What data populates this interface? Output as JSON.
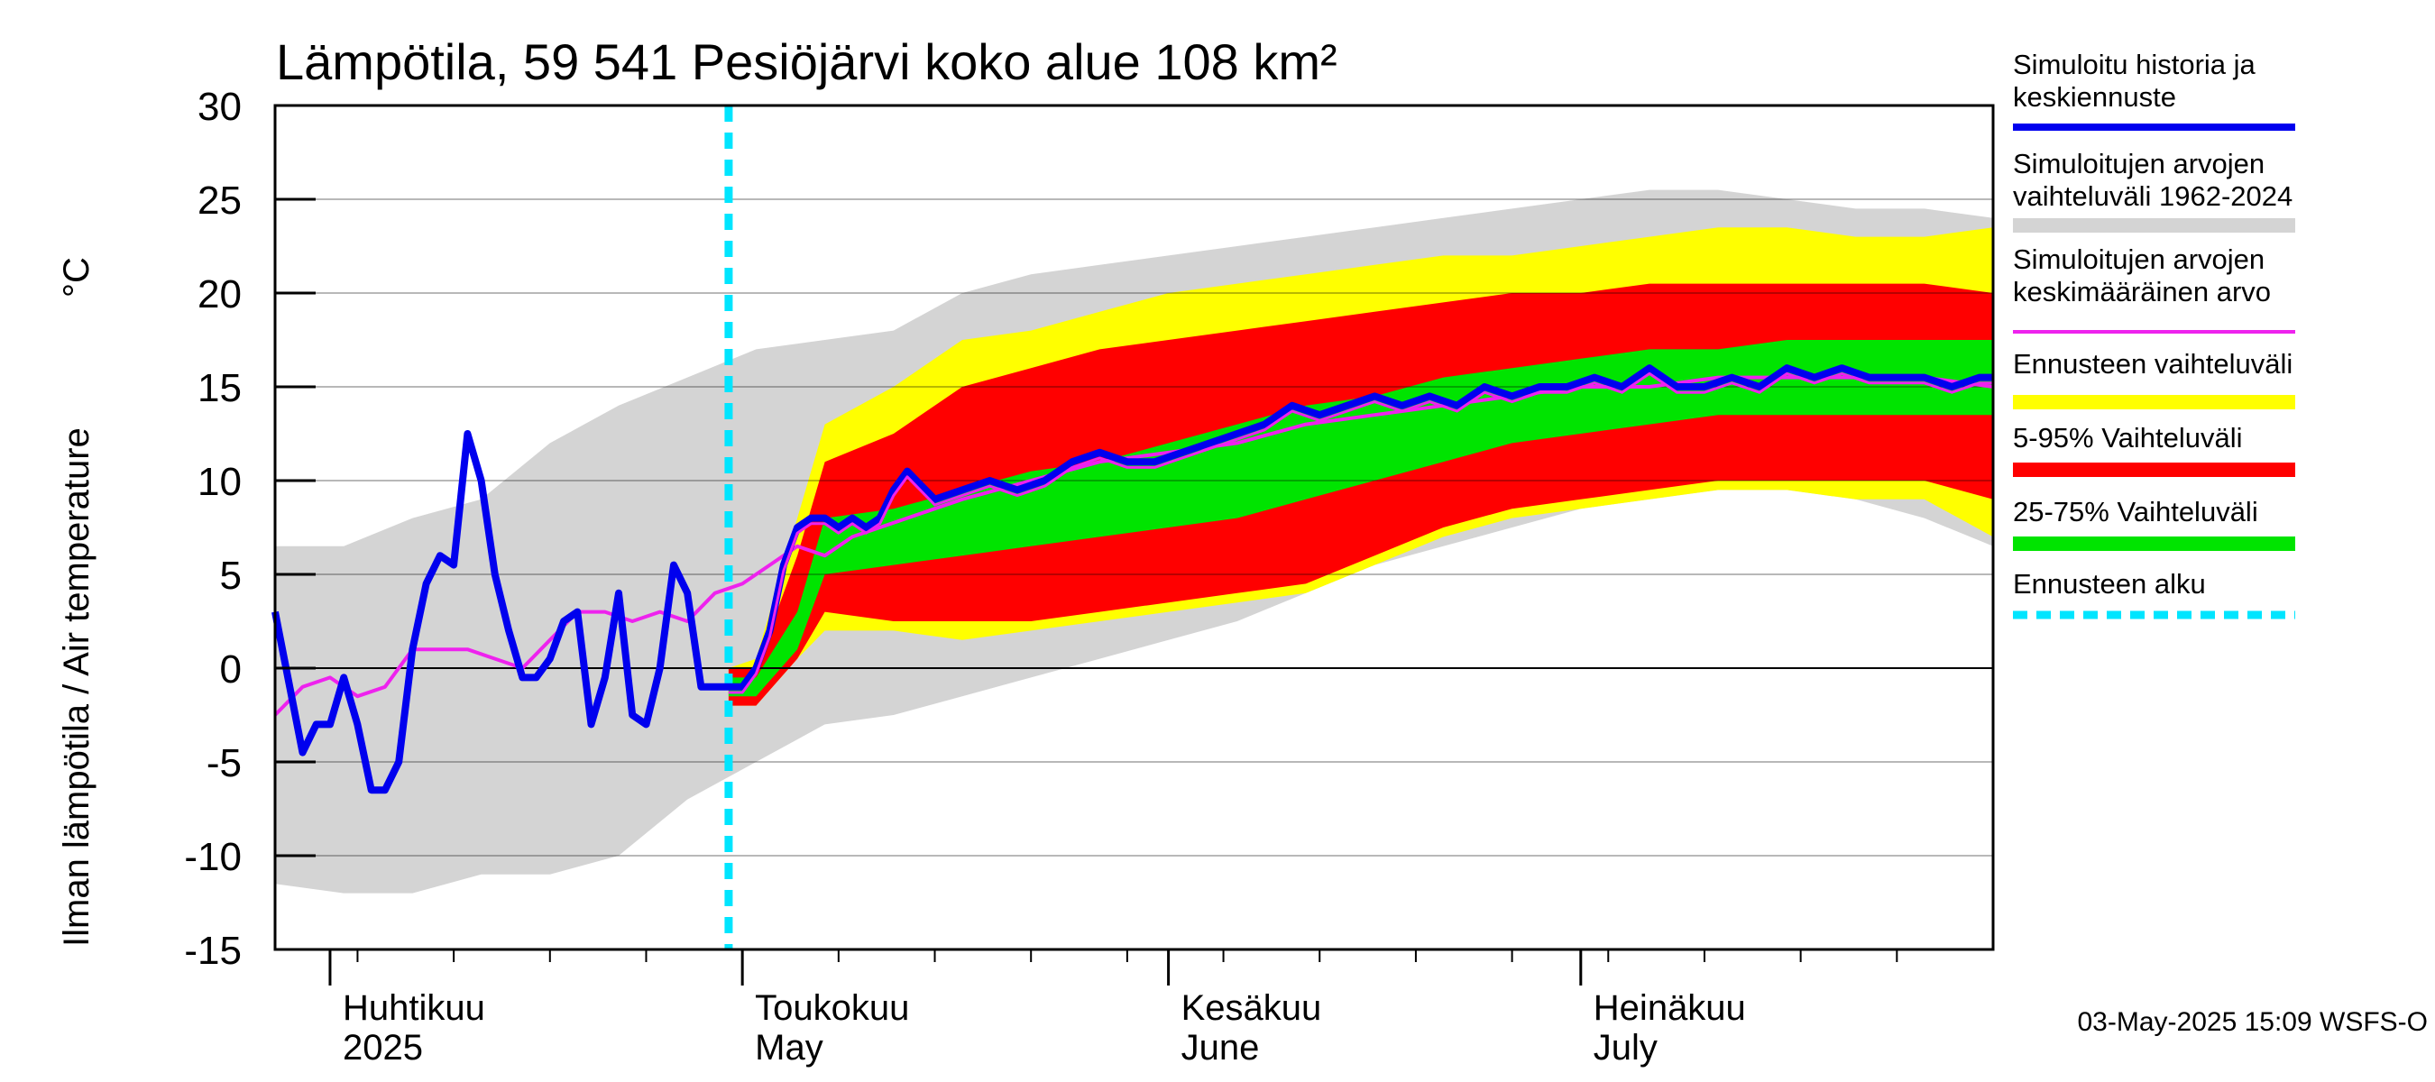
{
  "chart_data": {
    "type": "area",
    "title": "Lämpötila, 59 541 Pesiöjärvi koko alue 108 km²",
    "ylabel": "Ilman lämpötila / Air temperature",
    "yunit": "°C",
    "ylim": [
      -15,
      30
    ],
    "yticks": [
      "30",
      "25",
      "20",
      "15",
      "10",
      "5",
      "0",
      "-5",
      "-10",
      "-15"
    ],
    "xlim": [
      "2025-03-28",
      "2025-07-31"
    ],
    "month_labels": [
      {
        "line1": "Huhtikuu",
        "line2": "2025",
        "date": "2025-04-01"
      },
      {
        "line1": "Toukokuu",
        "line2": "May",
        "date": "2025-05-01"
      },
      {
        "line1": "Kesäkuu",
        "line2": "June",
        "date": "2025-06-01"
      },
      {
        "line1": "Heinäkuu",
        "line2": "July",
        "date": "2025-07-01"
      }
    ],
    "forecast_start": "2025-04-30",
    "colors": {
      "history_range": "#d4d4d4",
      "forecast_range": "#ffff00",
      "p5_95": "#ff0000",
      "p25_75": "#00e400",
      "simulated": "#0000ee",
      "mean": "#ee22ee",
      "forecast_start": "#00e5ff"
    },
    "legend": [
      {
        "label_lines": [
          "Simuloitu historia ja",
          "keskiennuste"
        ],
        "color": "#0000ee"
      },
      {
        "label_lines": [
          "Simuloitujen arvojen",
          "vaihteluväli 1962-2024"
        ],
        "color": "#d4d4d4"
      },
      {
        "label_lines": [
          "Simuloitujen arvojen",
          "keskimääräinen arvo"
        ],
        "color": "#ee22ee"
      },
      {
        "label_lines": [
          "Ennusteen vaihteluväli"
        ],
        "color": "#ffff00"
      },
      {
        "label_lines": [
          "5-95% Vaihteluväli"
        ],
        "color": "#ff0000"
      },
      {
        "label_lines": [
          "25-75% Vaihteluväli"
        ],
        "color": "#00e400"
      },
      {
        "label_lines": [
          "Ennusteen alku"
        ],
        "color": "#00e5ff"
      }
    ],
    "footer": "03-May-2025 15:09 WSFS-O",
    "history_range_days": [
      0,
      5,
      10,
      15,
      20,
      25,
      30,
      35,
      40,
      45,
      50,
      55,
      60,
      65,
      70,
      75,
      80,
      85,
      90,
      95,
      100,
      105,
      110,
      115,
      120,
      125
    ],
    "history_min": [
      -11.5,
      -12,
      -12,
      -11,
      -11,
      -10,
      -7,
      -5,
      -3,
      -2.5,
      -1.5,
      -0.5,
      0.5,
      1.5,
      2.5,
      4,
      5.5,
      6.5,
      7.5,
      8.5,
      9,
      9.5,
      9.5,
      9,
      8,
      6.5
    ],
    "history_max": [
      6.5,
      6.5,
      8,
      9,
      12,
      14,
      15.5,
      17,
      17.5,
      18,
      20,
      21,
      21.5,
      22,
      22.5,
      23,
      23.5,
      24,
      24.5,
      25,
      25.5,
      25.5,
      25,
      24.5,
      24.5,
      24
    ],
    "forecast_days": [
      33,
      35,
      38,
      40,
      45,
      50,
      55,
      60,
      65,
      70,
      75,
      80,
      85,
      90,
      95,
      100,
      105,
      110,
      115,
      120,
      125
    ],
    "forecast_min": [
      -2,
      -2,
      0.5,
      2,
      2,
      1.5,
      2,
      2.5,
      3,
      3.5,
      4,
      5.5,
      7,
      8,
      8.5,
      9,
      9.5,
      9.5,
      9,
      9,
      7
    ],
    "forecast_max": [
      0,
      0.5,
      8,
      13,
      15,
      17.5,
      18,
      19,
      20,
      20.5,
      21,
      21.5,
      22,
      22,
      22.5,
      23,
      23.5,
      23.5,
      23,
      23,
      23.5
    ],
    "p5": [
      -2,
      -2,
      0.5,
      3,
      2.5,
      2.5,
      2.5,
      3,
      3.5,
      4,
      4.5,
      6,
      7.5,
      8.5,
      9,
      9.5,
      10,
      10,
      10,
      10,
      9
    ],
    "p95": [
      0,
      0,
      6,
      11,
      12.5,
      15,
      16,
      17,
      17.5,
      18,
      18.5,
      19,
      19.5,
      20,
      20,
      20.5,
      20.5,
      20.5,
      20.5,
      20.5,
      20
    ],
    "p25": [
      -1.5,
      -1.5,
      1,
      5,
      5.5,
      6,
      6.5,
      7,
      7.5,
      8,
      9,
      10,
      11,
      12,
      12.5,
      13,
      13.5,
      13.5,
      13.5,
      13.5,
      13.5
    ],
    "p75": [
      -0.5,
      -0.5,
      3,
      8,
      8.5,
      9.5,
      10.5,
      11,
      12,
      13,
      14,
      14.5,
      15.5,
      16,
      16.5,
      17,
      17,
      17.5,
      17.5,
      17.5,
      17.5
    ],
    "simulated_days": [
      0,
      2,
      3,
      4,
      5,
      6,
      7,
      8,
      9,
      10,
      11,
      12,
      13,
      14,
      15,
      16,
      17,
      18,
      19,
      20,
      21,
      22,
      23,
      24,
      25,
      26,
      27,
      28,
      29,
      30,
      31,
      32,
      33,
      34,
      35,
      36,
      37,
      38,
      39,
      40,
      41,
      42,
      43,
      44,
      45,
      46,
      48,
      50,
      52,
      54,
      56,
      58,
      60,
      62,
      64,
      66,
      68,
      70,
      72,
      74,
      76,
      78,
      80,
      82,
      84,
      86,
      88,
      90,
      92,
      94,
      96,
      98,
      100,
      102,
      104,
      106,
      108,
      110,
      112,
      114,
      116,
      118,
      120,
      122,
      124,
      125
    ],
    "simulated_values": [
      3,
      -4.5,
      -3,
      -3,
      -0.5,
      -3,
      -6.5,
      -6.5,
      -5,
      1,
      4.5,
      6,
      5.5,
      12.5,
      10,
      5,
      2,
      -0.5,
      -0.5,
      0.5,
      2.5,
      3,
      -3,
      -0.5,
      4,
      -2.5,
      -3,
      0,
      5.5,
      4,
      -1,
      -1,
      -1,
      -1,
      0,
      2,
      5.5,
      7.5,
      8,
      8,
      7.5,
      8,
      7.5,
      8,
      9.5,
      10.5,
      9,
      9.5,
      10,
      9.5,
      10,
      11,
      11.5,
      11,
      11,
      11.5,
      12,
      12.5,
      13,
      14,
      13.5,
      14,
      14.5,
      14,
      14.5,
      14,
      15,
      14.5,
      15,
      15,
      15.5,
      15,
      16,
      15,
      15,
      15.5,
      15,
      16,
      15.5,
      16,
      15.5,
      15.5,
      15.5,
      15,
      15.5,
      15.5
    ],
    "mean_days": [
      0,
      2,
      4,
      6,
      8,
      10,
      12,
      14,
      16,
      18,
      20,
      22,
      24,
      26,
      28,
      30,
      32,
      34,
      36,
      38,
      40,
      42,
      44,
      46,
      48,
      50,
      55,
      60,
      65,
      70,
      75,
      80,
      85,
      90,
      95,
      100,
      105,
      110,
      115,
      120,
      125
    ],
    "mean_values": [
      -2.5,
      -1,
      -0.5,
      -1.5,
      -1,
      1,
      1,
      1,
      0.5,
      0,
      1.5,
      3,
      3,
      2.5,
      3,
      2.5,
      4,
      4.5,
      5.5,
      6.5,
      6,
      7,
      7.5,
      8,
      8.5,
      9,
      10,
      11,
      11.5,
      12,
      13,
      13.5,
      14,
      14.5,
      15,
      15,
      15.5,
      15.5,
      15.5,
      15.5,
      15
    ]
  }
}
